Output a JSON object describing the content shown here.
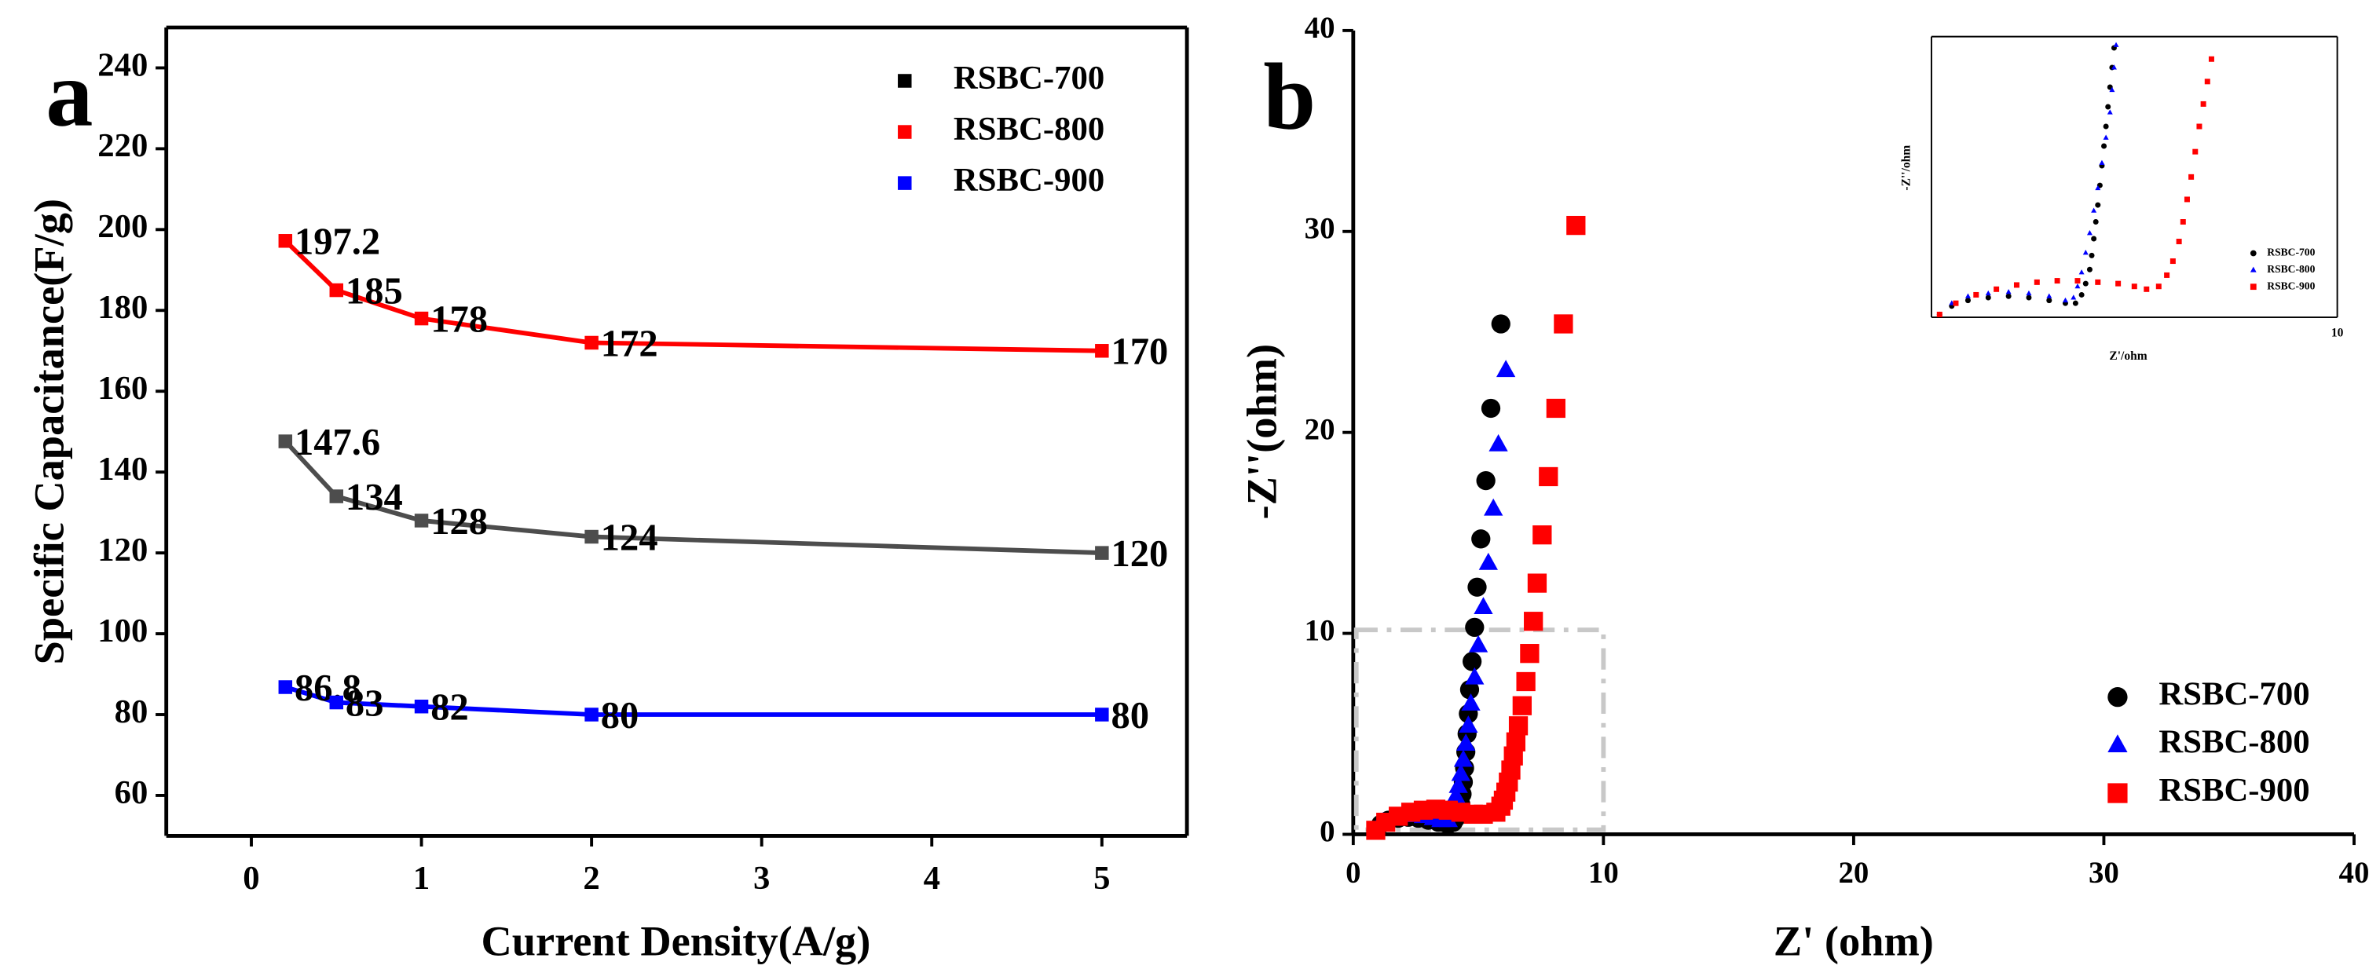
{
  "chart_data": [
    {
      "type": "line",
      "panel": "a",
      "x_label": "Current Density(A/g)",
      "y_label": "Specific Capacitance(F/g)",
      "x": [
        0.2,
        0.5,
        1,
        2,
        5
      ],
      "xlim": [
        -0.5,
        5.5
      ],
      "xticks": [
        0,
        1,
        2,
        3,
        4,
        5
      ],
      "ylim": [
        50,
        250
      ],
      "yticks": [
        60,
        80,
        100,
        120,
        140,
        160,
        180,
        200,
        220,
        240
      ],
      "marker": "square",
      "series": [
        {
          "name": "RSBC-700",
          "color": "#4d4d4d",
          "values": [
            147.6,
            134,
            128,
            124,
            120
          ]
        },
        {
          "name": "RSBC-800",
          "color": "#ff0000",
          "values": [
            197.2,
            185,
            178,
            172,
            170
          ]
        },
        {
          "name": "RSBC-900",
          "color": "#0000ff",
          "values": [
            86.8,
            83,
            82,
            80,
            80
          ]
        }
      ]
    },
    {
      "type": "scatter",
      "panel": "b",
      "x_label": "Z' (ohm)",
      "y_label": "-Z''(ohm)",
      "xlim": [
        0,
        40
      ],
      "xticks": [
        0,
        10,
        20,
        30,
        40
      ],
      "ylim": [
        0,
        40
      ],
      "yticks": [
        0,
        10,
        20,
        30,
        40
      ],
      "series": [
        {
          "name": "RSBC-700",
          "color": "#000000",
          "marker": "circle",
          "x": [
            0.9,
            1.1,
            1.4,
            1.8,
            2.2,
            2.6,
            3.0,
            3.4,
            3.7,
            3.8,
            4.0,
            4.1,
            4.2,
            4.3,
            4.35,
            4.4,
            4.45,
            4.5,
            4.55,
            4.6,
            4.65,
            4.75,
            4.85,
            4.95,
            5.1,
            5.3,
            5.5,
            5.9
          ],
          "values": [
            0.2,
            0.5,
            0.7,
            0.8,
            0.85,
            0.8,
            0.7,
            0.6,
            0.55,
            0.5,
            0.6,
            0.8,
            1.1,
            1.5,
            2.0,
            2.6,
            3.3,
            4.1,
            5.0,
            6.0,
            7.2,
            8.6,
            10.3,
            12.3,
            14.7,
            17.6,
            21.2,
            25.4
          ]
        },
        {
          "name": "RSBC-800",
          "color": "#0000ff",
          "marker": "triangle",
          "x": [
            0.9,
            1.2,
            1.6,
            2.0,
            2.4,
            2.8,
            3.2,
            3.5,
            3.8,
            3.9,
            4.0,
            4.1,
            4.2,
            4.3,
            4.4,
            4.5,
            4.6,
            4.7,
            4.85,
            5.0,
            5.2,
            5.4,
            5.6,
            5.8,
            6.1
          ],
          "values": [
            0.2,
            0.6,
            0.85,
            0.95,
            0.95,
            0.9,
            0.8,
            0.7,
            0.7,
            1.0,
            1.4,
            1.9,
            2.4,
            3.0,
            3.7,
            4.5,
            5.4,
            6.5,
            7.8,
            9.4,
            11.3,
            13.5,
            16.2,
            19.4,
            23.1
          ]
        },
        {
          "name": "RSBC-900",
          "color": "#ff0000",
          "marker": "square",
          "x": [
            0.9,
            1.3,
            1.8,
            2.3,
            2.8,
            3.3,
            3.8,
            4.3,
            4.8,
            5.2,
            5.7,
            5.9,
            6.0,
            6.1,
            6.2,
            6.3,
            6.4,
            6.5,
            6.6,
            6.75,
            6.9,
            7.05,
            7.2,
            7.35,
            7.55,
            7.8,
            8.1,
            8.4,
            8.9
          ],
          "values": [
            0.2,
            0.6,
            0.9,
            1.1,
            1.2,
            1.25,
            1.2,
            1.1,
            1.0,
            1.0,
            1.1,
            1.4,
            1.7,
            2.1,
            2.6,
            3.2,
            3.9,
            4.6,
            5.4,
            6.4,
            7.6,
            9.0,
            10.6,
            12.5,
            14.9,
            17.8,
            21.2,
            25.4,
            30.3
          ]
        }
      ]
    },
    {
      "type": "scatter",
      "x_label": "Z'/ohm",
      "y_label": "-Z''/ohm",
      "xlim": [
        0,
        10
      ],
      "xticks": [
        10
      ],
      "ylim": [
        0,
        10
      ],
      "series": [
        {
          "name": "RSBC-700",
          "color": "#000000",
          "marker": "circle",
          "x": [
            0.2,
            0.5,
            0.9,
            1.4,
            1.9,
            2.4,
            2.9,
            3.3,
            3.55,
            3.7,
            3.8,
            3.9,
            3.95,
            4.0,
            4.05,
            4.1,
            4.15,
            4.2,
            4.25,
            4.3,
            4.35,
            4.4,
            4.45,
            4.5
          ],
          "values": [
            0.1,
            0.4,
            0.6,
            0.7,
            0.75,
            0.7,
            0.6,
            0.5,
            0.5,
            0.8,
            1.2,
            1.7,
            2.2,
            2.8,
            3.4,
            4.0,
            4.7,
            5.4,
            6.1,
            6.8,
            7.5,
            8.2,
            8.9,
            9.6
          ]
        },
        {
          "name": "RSBC-800",
          "color": "#0000ff",
          "marker": "triangle",
          "x": [
            0.2,
            0.5,
            0.9,
            1.4,
            1.9,
            2.4,
            2.9,
            3.3,
            3.5,
            3.6,
            3.7,
            3.8,
            3.9,
            4.0,
            4.1,
            4.2,
            4.3,
            4.4,
            4.45,
            4.5,
            4.55
          ],
          "values": [
            0.1,
            0.5,
            0.75,
            0.85,
            0.9,
            0.85,
            0.75,
            0.6,
            0.7,
            1.1,
            1.6,
            2.3,
            3.0,
            3.8,
            4.6,
            5.5,
            6.4,
            7.3,
            8.1,
            8.9,
            9.7
          ]
        },
        {
          "name": "RSBC-900",
          "color": "#ff0000",
          "marker": "square",
          "x": [
            0.2,
            0.6,
            1.1,
            1.6,
            2.1,
            2.6,
            3.1,
            3.6,
            4.1,
            4.6,
            5.0,
            5.3,
            5.6,
            5.8,
            5.95,
            6.1,
            6.2,
            6.3,
            6.4,
            6.5,
            6.6,
            6.7,
            6.8,
            6.9
          ],
          "values": [
            0.1,
            0.5,
            0.8,
            1.0,
            1.15,
            1.25,
            1.3,
            1.3,
            1.25,
            1.2,
            1.1,
            1.0,
            1.1,
            1.5,
            2.0,
            2.7,
            3.4,
            4.2,
            5.0,
            5.9,
            6.8,
            7.6,
            8.4,
            9.2
          ]
        }
      ]
    }
  ]
}
